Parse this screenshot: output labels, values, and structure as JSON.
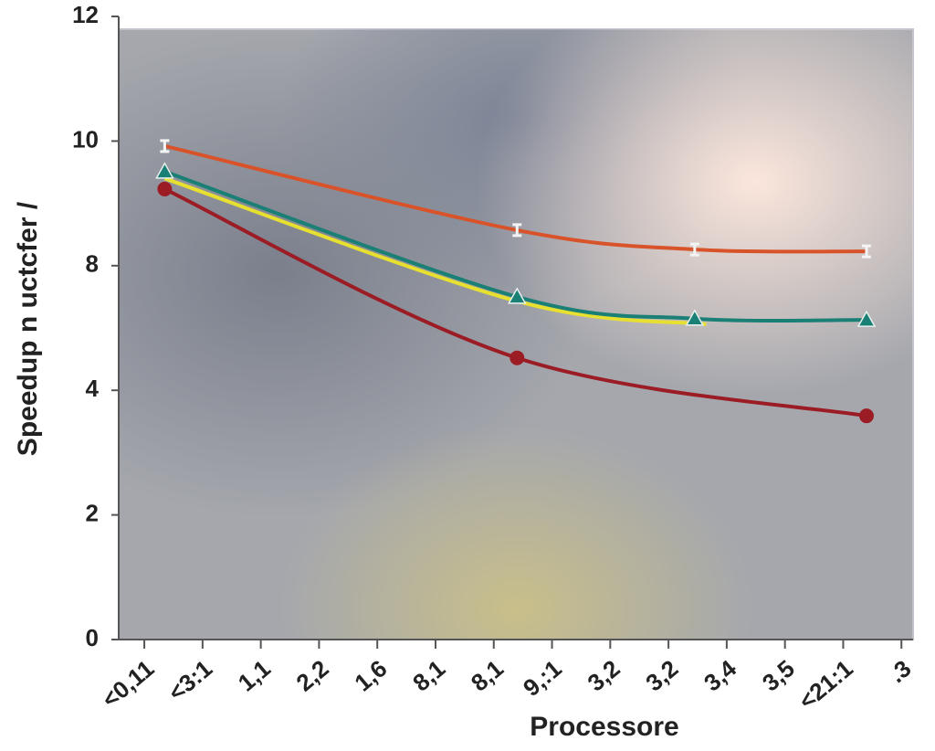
{
  "chart_data": {
    "type": "line",
    "y_label": "Speedup n uctcfer /",
    "x_label": "Processore",
    "xlim": [
      -0.44,
      13.2
    ],
    "xticks": [
      {
        "value": 0,
        "label": "<0,11"
      },
      {
        "value": 1,
        "label": "<3:1"
      },
      {
        "value": 2,
        "label": "1,1"
      },
      {
        "value": 3,
        "label": "2,2"
      },
      {
        "value": 4,
        "label": "1,6"
      },
      {
        "value": 5,
        "label": "8,1"
      },
      {
        "value": 6,
        "label": "8,1"
      },
      {
        "value": 7,
        "label": "9,:1"
      },
      {
        "value": 8,
        "label": "3,2"
      },
      {
        "value": 9,
        "label": "3,2"
      },
      {
        "value": 10,
        "label": "3,4"
      },
      {
        "value": 11,
        "label": "3,5"
      },
      {
        "value": 12,
        "label": "<21:1"
      },
      {
        "value": 13,
        "label": ".3"
      }
    ],
    "ylim": [
      0,
      10
    ],
    "yticks": [
      0,
      2,
      4,
      {
        "value": 6,
        "label": "8"
      },
      {
        "value": 8,
        "label": "10"
      },
      {
        "value": 10,
        "label": "12"
      }
    ],
    "series": [
      {
        "color": "#d9532a",
        "marker": "x",
        "x": [
          0.35,
          6.4,
          9.45,
          12.4
        ],
        "values": [
          7.92,
          6.57,
          6.26,
          6.23
        ]
      },
      {
        "color": "#e8e030",
        "marker": "none",
        "x": [
          0.35,
          6.4,
          9.65
        ],
        "values": [
          7.4,
          5.43,
          5.06
        ]
      },
      {
        "color": "#1a7f74",
        "marker": "triangle",
        "x": [
          0.35,
          6.4,
          9.45,
          12.4
        ],
        "values": [
          7.51,
          5.5,
          5.15,
          5.13
        ]
      },
      {
        "color": "#9b1c24",
        "marker": "circle",
        "x": [
          0.35,
          6.4,
          12.4
        ],
        "values": [
          7.23,
          4.52,
          3.59
        ]
      }
    ]
  }
}
